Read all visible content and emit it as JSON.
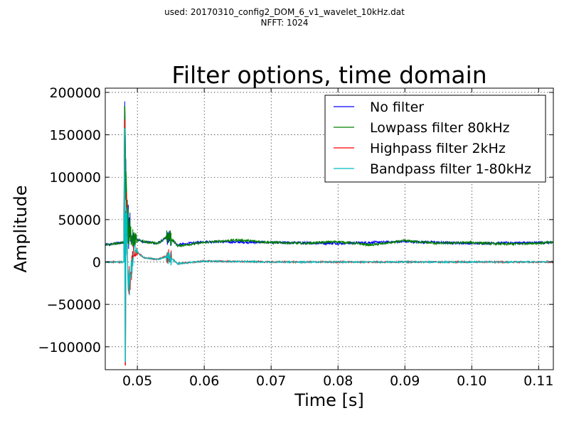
{
  "header": {
    "used_line": "used: 20170310_config2_DOM_6_v1_wavelet_10kHz.dat",
    "nfft_line": "NFFT: 1024"
  },
  "chart_data": {
    "type": "line",
    "title": "Filter options, time domain",
    "xlabel": "Time [s]",
    "ylabel": "Amplitude",
    "xlim": [
      0.0452,
      0.1122
    ],
    "ylim": [
      -127000,
      205000
    ],
    "xticks": [
      0.05,
      0.06,
      0.07,
      0.08,
      0.09,
      0.1,
      0.11
    ],
    "xtick_labels": [
      "0.05",
      "0.06",
      "0.07",
      "0.08",
      "0.09",
      "0.10",
      "0.11"
    ],
    "yticks": [
      200000,
      150000,
      100000,
      50000,
      0,
      -50000,
      -100000
    ],
    "ytick_labels": [
      "200000",
      "150000",
      "100000",
      "50000",
      "0",
      "−50000",
      "−100000"
    ],
    "grid": true,
    "legend_position": "top-right",
    "series": [
      {
        "name": "No filter",
        "color": "#0000ff",
        "x": [
          0.0452,
          0.047,
          0.048,
          0.0481,
          0.0483,
          0.0487,
          0.0495,
          0.051,
          0.053,
          0.0547,
          0.056,
          0.06,
          0.07,
          0.08,
          0.09,
          0.1,
          0.1122
        ],
        "y": [
          20000,
          22000,
          23000,
          183000,
          75000,
          40000,
          27000,
          24000,
          22000,
          30000,
          20000,
          24000,
          23000,
          22000,
          24000,
          22000,
          23000
        ]
      },
      {
        "name": "Lowpass filter 80kHz",
        "color": "#008000",
        "x": [
          0.0452,
          0.047,
          0.048,
          0.0481,
          0.0483,
          0.0487,
          0.0495,
          0.051,
          0.053,
          0.0547,
          0.056,
          0.06,
          0.065,
          0.07,
          0.075,
          0.08,
          0.085,
          0.09,
          0.095,
          0.1,
          0.105,
          0.1122
        ],
        "y": [
          20000,
          22000,
          23000,
          184000,
          75000,
          40000,
          27000,
          24000,
          22000,
          31000,
          19000,
          23000,
          26000,
          23000,
          22000,
          24000,
          20000,
          25000,
          22000,
          23000,
          21000,
          23000
        ]
      },
      {
        "name": "Highpass filter 2kHz",
        "color": "#ff0000",
        "x": [
          0.0452,
          0.047,
          0.048,
          0.0481,
          0.0482,
          0.0483,
          0.0487,
          0.0495,
          0.051,
          0.053,
          0.0547,
          0.056,
          0.06,
          0.07,
          0.08,
          0.09,
          0.1,
          0.1122
        ],
        "y": [
          0,
          0,
          0,
          168000,
          -122000,
          60000,
          -30000,
          15000,
          5000,
          3000,
          8000,
          -2000,
          1000,
          0,
          0,
          0,
          0,
          0
        ]
      },
      {
        "name": "Bandpass filter 1-80kHz",
        "color": "#00bfbf",
        "x": [
          0.0452,
          0.047,
          0.048,
          0.0481,
          0.0482,
          0.0483,
          0.0487,
          0.0495,
          0.051,
          0.053,
          0.0547,
          0.056,
          0.06,
          0.07,
          0.08,
          0.09,
          0.1,
          0.1122
        ],
        "y": [
          0,
          0,
          0,
          158000,
          -118000,
          58000,
          -28000,
          14000,
          5000,
          3000,
          7000,
          -2000,
          1000,
          0,
          0,
          0,
          0,
          0
        ]
      }
    ]
  }
}
